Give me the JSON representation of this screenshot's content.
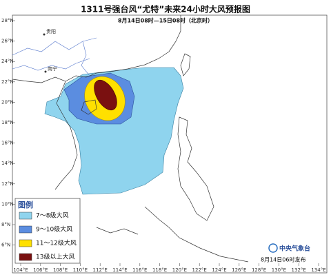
{
  "header": {
    "title": "1311号强台风“尤特”未来24小时大风预报图",
    "subtitle": "8月14日08时—15日08时（北京时）"
  },
  "map": {
    "lat_labels": [
      "28°N",
      "26°N",
      "24°N",
      "22°N",
      "20°N",
      "18°N",
      "16°N",
      "14°N",
      "12°N",
      "10°N",
      "8°N",
      "6°N"
    ],
    "lon_labels": [
      "104°E",
      "106°E",
      "108°E",
      "110°E",
      "112°E",
      "114°E",
      "116°E",
      "118°E",
      "120°E",
      "122°E",
      "124°E",
      "126°E",
      "128°E",
      "130°E",
      "132°E",
      "134°E"
    ],
    "places": [
      "贵阳",
      "南宁"
    ]
  },
  "legend": {
    "title": "图例",
    "items": [
      "7～8级大风",
      "9～10级大风",
      "11～12级大风",
      "13级以上大风"
    ]
  },
  "footer": {
    "agency": "中央气象台",
    "issued": "8月14日06时发布"
  }
}
